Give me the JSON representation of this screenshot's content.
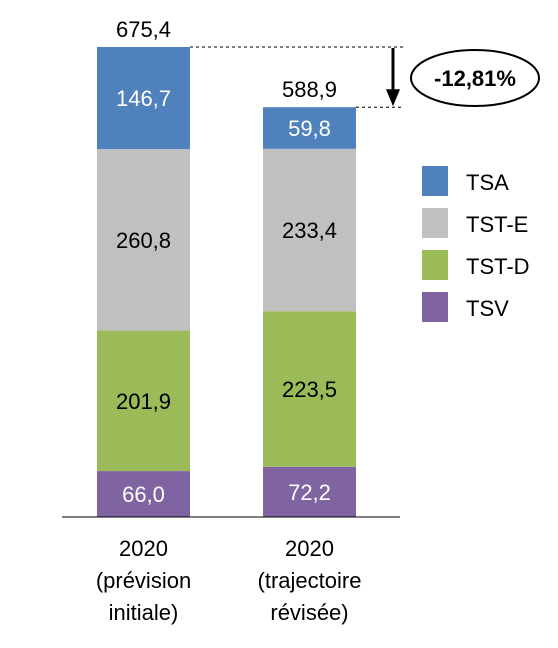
{
  "chart_data": {
    "type": "bar",
    "stacked": true,
    "categories": [
      [
        "2020",
        "(prévision",
        "initiale)"
      ],
      [
        "2020",
        "(trajectoire",
        "révisée)"
      ]
    ],
    "series": [
      {
        "name": "TSV",
        "color": "#8064A2",
        "label_color": "#ffffff",
        "values": [
          66.0,
          72.2
        ],
        "labels": [
          "66,0",
          "72,2"
        ]
      },
      {
        "name": "TST-D",
        "color": "#9BBB59",
        "label_color": "#000000",
        "values": [
          201.9,
          223.5
        ],
        "labels": [
          "201,9",
          "223,5"
        ]
      },
      {
        "name": "TST-E",
        "color": "#C0C0C0",
        "label_color": "#000000",
        "values": [
          260.8,
          233.4
        ],
        "labels": [
          "260,8",
          "233,4"
        ]
      },
      {
        "name": "TSA",
        "color": "#4F81BD",
        "label_color": "#ffffff",
        "values": [
          146.7,
          59.8
        ],
        "labels": [
          "146,7",
          "59,8"
        ]
      }
    ],
    "totals": [
      675.4,
      588.9
    ],
    "total_labels": [
      "675,4",
      "588,9"
    ],
    "annotation": "-12,81%",
    "legend": [
      "TSA",
      "TST-E",
      "TST-D",
      "TSV"
    ],
    "legend_position": "right",
    "ylim": [
      0,
      675.4
    ],
    "grid": false
  }
}
